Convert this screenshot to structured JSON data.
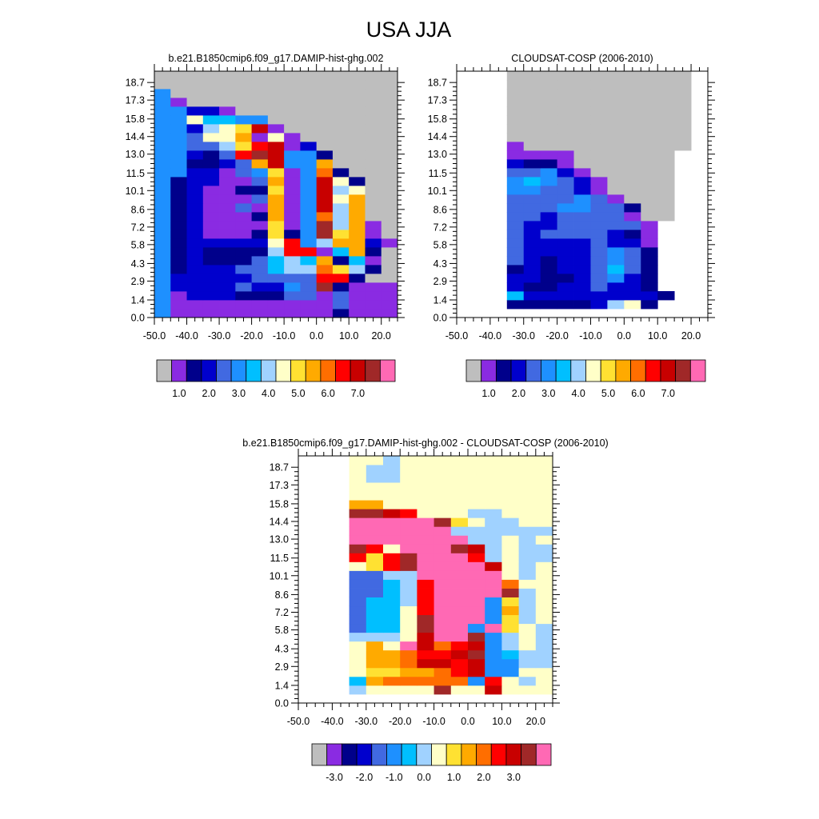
{
  "title": "USA JJA",
  "colors": {
    "palette": [
      "#bebebe",
      "#8a2be2",
      "#00008b",
      "#0000cd",
      "#4169e1",
      "#1e90ff",
      "#00bfff",
      "#a0d2ff",
      "#ffffc8",
      "#ffe132",
      "#ffaa00",
      "#ff6e00",
      "#ff0000",
      "#c80000",
      "#a02828",
      "#ff69b4"
    ],
    "missing": "#bebebe",
    "diff_background": "#ffffc8"
  },
  "chart_data": [
    {
      "type": "heatmap",
      "title": "b.e21.B1850cmip6.f09_g17.DAMIP-hist-ghg.002",
      "x_tick_labels": [
        "-50.0",
        "-40.0",
        "-30.0",
        "-20.0",
        "-10.0",
        "0.0",
        "10.0",
        "20.0"
      ],
      "y_tick_labels": [
        "0.0",
        "1.4",
        "2.9",
        "4.3",
        "5.8",
        "7.2",
        "8.6",
        "10.1",
        "11.5",
        "13.0",
        "14.4",
        "15.8",
        "17.3",
        "18.7"
      ],
      "colorbar_labels": [
        "1.0",
        "2.0",
        "3.0",
        "4.0",
        "5.0",
        "6.0",
        "7.0"
      ],
      "x": [
        -47.5,
        -42.5,
        -37.5,
        -32.5,
        -27.5,
        -22.5,
        -17.5,
        -12.5,
        -7.5,
        -2.5,
        2.5,
        7.5,
        12.5,
        17.5,
        22.5
      ],
      "y": [
        0.35,
        1.05,
        1.75,
        2.45,
        3.15,
        3.85,
        4.55,
        5.25,
        5.95,
        6.65,
        7.35,
        8.05,
        8.75,
        9.45,
        10.15,
        10.85,
        11.55,
        12.25,
        12.95,
        13.65,
        14.35,
        15.05,
        15.75,
        16.45,
        17.15,
        17.85,
        18.55,
        19.25
      ],
      "color_index_rows": [
        "FBBBBBBBBBBCBBB",
        "FBBBBBBBBBBEBBB",
        "FBDDDCCCEEBEBBB",
        "FDDDDEDDFEOCBBB",
        "FDDDDDEEEEMMCAA",
        "FCDDDEEGHHLJHCA",
        "FCDCCCEGHGKCGBA",
        "FCDCCCCHMMBGKCA",
        "FCDDDDDIMFHKKDB",
        "FCDBBBCJCFOJKBA",
        "FCDBBBBJBFOHKBA",
        "FCDBBBCKBFLHKAA",
        "FCDBBEBKBFNHKAA",
        "FCDBBBEKBFNIKAA",
        "FCDBBCCJBFNHIAA",
        "FCDDBBEKBFNICAA",
        "FFDDBEFJBFLCAAA",
        "FFCCDEKNFFKAAAA",
        "FFDCEMONFFCAAAA",
        "FFEEHJMNBDAAAAA",
        "FFEIIKBIBAAAAAA",
        "FFDHIJNBAAAAAAA",
        "FFIGGFFAAAAAAAA",
        "FFDDBAAAAAAAAAA",
        "FBAAAAAAAAAAAAA",
        "FAAAAAAAAAAAAAA",
        "AAAAAAAAAAAAAAA",
        "AAAAAAAAAAAAAAA"
      ]
    },
    {
      "type": "heatmap",
      "title": "CLOUDSAT-COSP (2006-2010)",
      "x_tick_labels": [
        "-50.0",
        "-40.0",
        "-30.0",
        "-20.0",
        "-10.0",
        "0.0",
        "10.0",
        "20.0"
      ],
      "y_tick_labels": [
        "0.0",
        "1.4",
        "2.9",
        "4.3",
        "5.8",
        "7.2",
        "8.6",
        "10.1",
        "11.5",
        "13.0",
        "14.4",
        "15.8",
        "17.3",
        "18.7"
      ],
      "colorbar_labels": [
        "1.0",
        "2.0",
        "3.0",
        "4.0",
        "5.0",
        "6.0",
        "7.0"
      ],
      "x": [
        -47.5,
        -42.5,
        -37.5,
        -32.5,
        -27.5,
        -22.5,
        -17.5,
        -12.5,
        -7.5,
        -2.5,
        2.5,
        7.5,
        12.5,
        17.5,
        22.5
      ],
      "y": [
        0.35,
        1.05,
        1.75,
        2.45,
        3.15,
        3.85,
        4.55,
        5.25,
        5.95,
        6.65,
        7.35,
        8.05,
        8.75,
        9.45,
        10.15,
        10.85,
        11.55,
        12.25,
        12.95,
        13.65,
        14.35,
        15.05,
        15.75,
        16.45,
        17.15,
        17.85,
        18.55,
        19.25
      ],
      "color_index_rows": [
        "...............",
        "...CCCCCDHIC...",
        "...GDDDDDDDDC..",
        "...DCCDDEDDC...",
        "...DDCCDEFDC...",
        "...CDCDDEGEC...",
        "...EDCDDEFEC...",
        "...EDDDDEFEC...",
        "...EDDDDEDDB...",
        "...EDEEEEDCB...",
        "...EDDEEEEEB...",
        "...EEDEEEEBAA..",
        "...EEEFFEECAA..",
        "...EEEEFEBAAA..",
        "...FFEEDBAAAA..",
        "...FGFEDBAAAA..",
        "...EEFDBAAAAA..",
        "...DCCBAAAAAA..",
        "...BBBBAAAAAA..",
        "...BAAAAAAAAAA.",
        "...AAAAAAAAAAA.",
        "...AAAAAAAAAAA.",
        "...AAAAAAAAAAA.",
        "...AAAAAAAAAAA.",
        "...AAAAAAAAAAA.",
        "...AAAAAAAAAAA.",
        "...AAAAAAAAAAA.",
        "...AAAAAAAAAAA."
      ]
    },
    {
      "type": "heatmap",
      "title": "b.e21.B1850cmip6.f09_g17.DAMIP-hist-ghg.002 - CLOUDSAT-COSP (2006-2010)",
      "x_tick_labels": [
        "-50.0",
        "-40.0",
        "-30.0",
        "-20.0",
        "-10.0",
        "0.0",
        "10.0",
        "20.0"
      ],
      "y_tick_labels": [
        "0.0",
        "1.4",
        "2.9",
        "4.3",
        "5.8",
        "7.2",
        "8.6",
        "10.1",
        "11.5",
        "13.0",
        "14.4",
        "15.8",
        "17.3",
        "18.7"
      ],
      "colorbar_labels": [
        "-3.0",
        "-2.0",
        "-1.0",
        "0.0",
        "1.0",
        "2.0",
        "3.0"
      ],
      "x": [
        -47.5,
        -42.5,
        -37.5,
        -32.5,
        -27.5,
        -22.5,
        -17.5,
        -12.5,
        -7.5,
        -2.5,
        2.5,
        7.5,
        12.5,
        17.5,
        22.5
      ],
      "y": [
        0.35,
        1.05,
        1.75,
        2.45,
        3.15,
        3.85,
        4.55,
        5.25,
        5.95,
        6.65,
        7.35,
        8.05,
        8.75,
        9.45,
        10.15,
        10.85,
        11.55,
        12.25,
        12.95,
        13.65,
        14.35,
        15.05,
        15.75,
        16.45,
        17.15,
        17.85,
        18.55,
        19.25
      ],
      "color_index_rows": [
        "...............",
        "...HIIIIOIINIII",
        "...GKLLLLLFMIHI",
        "...IJJKKLMNFFII",
        "...IKKLNNMNFFHH",
        "...IKKLMMNOFGHH",
        "...IKIPNLMNFHIH",
        "...HHHINPPOFHIH",
        "...EGGIOPPFPJIH",
        "...EGGIOPPPFJHI",
        "...EGGIMPPPFKHI",
        "...EGGHMPPPFJHI",
        "...EEGHMPPPPOHI",
        "...EEGHMPPPPLII",
        "...EEHHPPPPPIHI",
        "...IJMOPPPPNIHI",
        "...MJMOPPPMHIHH",
        "...OMIPPPONHIHH",
        "...PPPPPPPHHIHI",
        "...PPPPPPHHHHHH",
        "...PPPPPOJIHHII",
        "...OONMIIIHHIII",
        "...KKIIIIIIIIII",
        "...IIIIIIIIIIII",
        "...IIIIIIIIIIII",
        "...IHHIIIIIIIII",
        "...IHHIIIIIIIII",
        "...IIHIIIIIIIII"
      ]
    }
  ]
}
